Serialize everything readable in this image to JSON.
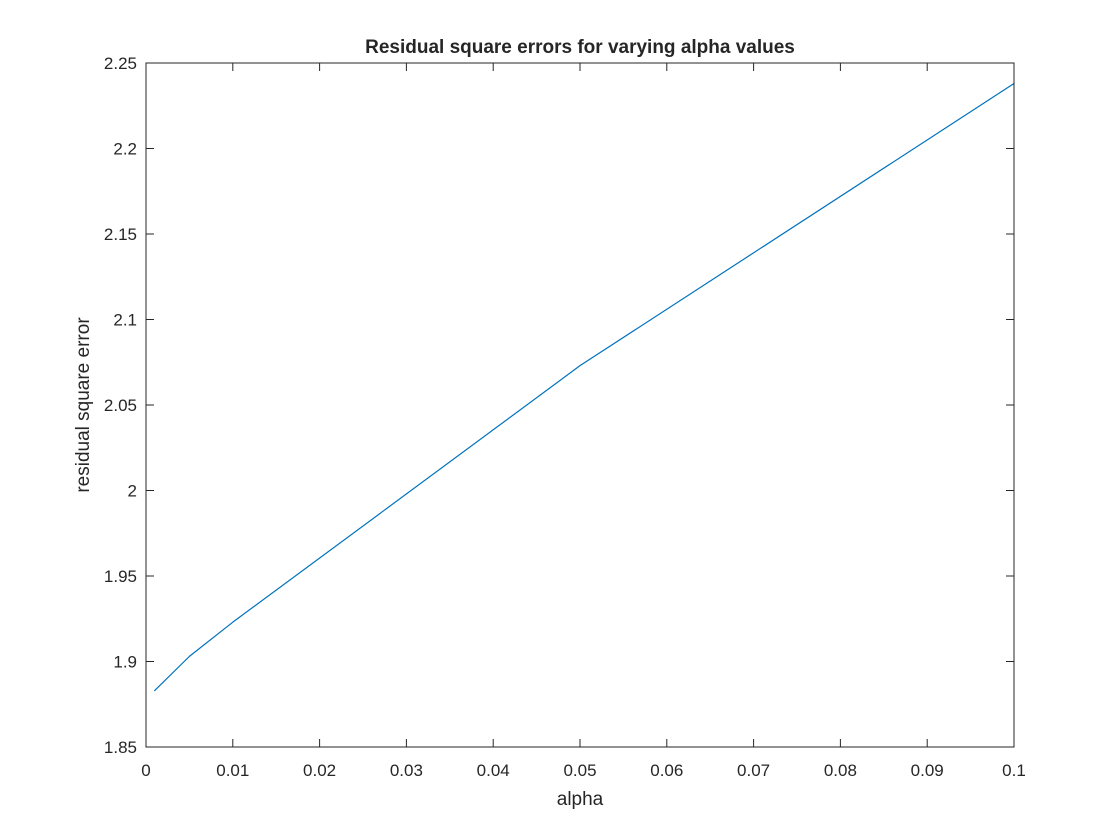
{
  "chart_data": {
    "type": "line",
    "title": "Residual square errors for varying alpha values",
    "xlabel": "alpha",
    "ylabel": "residual square error",
    "xlim": [
      0,
      0.1
    ],
    "ylim": [
      1.85,
      2.25
    ],
    "xticks": [
      0,
      0.01,
      0.02,
      0.03,
      0.04,
      0.05,
      0.06,
      0.07,
      0.08,
      0.09,
      0.1
    ],
    "xtick_labels": [
      "0",
      "0.01",
      "0.02",
      "0.03",
      "0.04",
      "0.05",
      "0.06",
      "0.07",
      "0.08",
      "0.09",
      "0.1"
    ],
    "yticks": [
      1.85,
      1.9,
      1.95,
      2,
      2.05,
      2.1,
      2.15,
      2.2,
      2.25
    ],
    "ytick_labels": [
      "1.85",
      "1.9",
      "1.95",
      "2",
      "2.05",
      "2.1",
      "2.15",
      "2.2",
      "2.25"
    ],
    "grid": false,
    "series": [
      {
        "color": "#0072BD",
        "x": [
          0.001,
          0.005,
          0.01,
          0.05,
          0.1
        ],
        "y": [
          1.883,
          1.903,
          1.923,
          2.073,
          2.238
        ]
      }
    ]
  }
}
